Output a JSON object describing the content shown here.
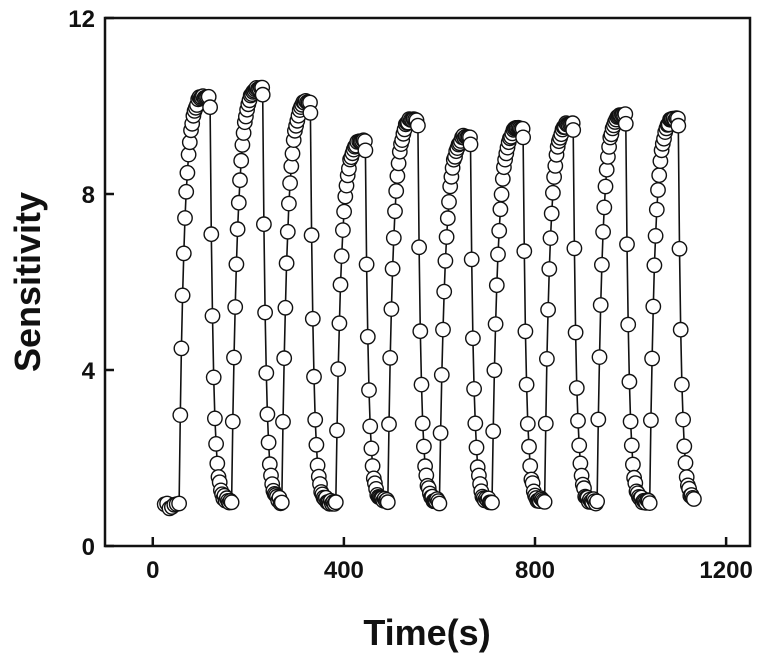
{
  "chart_data": {
    "type": "scatter",
    "title": "",
    "xlabel": "Time(s)",
    "ylabel": "Sensitivity",
    "xlim": [
      -100,
      1250
    ],
    "ylim": [
      0,
      12
    ],
    "xticks": [
      0,
      400,
      800,
      1200
    ],
    "xtick_labels": [
      "0",
      "400",
      "800",
      "1200"
    ],
    "yticks": [
      0,
      4,
      8,
      12
    ],
    "ytick_labels": [
      "0",
      "4",
      "8",
      "12"
    ],
    "grid": false,
    "legend": "none",
    "marker": "open-circle",
    "line_color": "#111111",
    "marker_fill": "#ffffff",
    "baseline": 1.0,
    "cycles": [
      {
        "on": 55,
        "peak_time": 100,
        "peak": 10.2,
        "off": 120
      },
      {
        "on": 165,
        "peak_time": 215,
        "peak": 10.4,
        "off": 230
      },
      {
        "on": 270,
        "peak_time": 318,
        "peak": 10.1,
        "off": 330
      },
      {
        "on": 383,
        "peak_time": 430,
        "peak": 9.2,
        "off": 445
      },
      {
        "on": 492,
        "peak_time": 538,
        "peak": 9.7,
        "off": 555
      },
      {
        "on": 600,
        "peak_time": 650,
        "peak": 9.3,
        "off": 665
      },
      {
        "on": 710,
        "peak_time": 760,
        "peak": 9.5,
        "off": 775
      },
      {
        "on": 820,
        "peak_time": 865,
        "peak": 9.6,
        "off": 880
      },
      {
        "on": 930,
        "peak_time": 975,
        "peak": 9.8,
        "off": 990
      },
      {
        "on": 1040,
        "peak_time": 1085,
        "peak": 9.7,
        "off": 1100
      }
    ],
    "end_time": 1135
  }
}
